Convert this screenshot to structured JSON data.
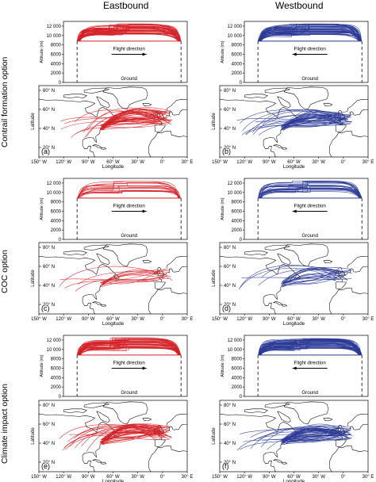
{
  "headers": {
    "left": "Eastbound",
    "right": "Westbound"
  },
  "rows": [
    {
      "label": "Contrail formation option",
      "panels": [
        "(a)",
        "(b)"
      ]
    },
    {
      "label": "COC option",
      "panels": [
        "(c)",
        "(d)"
      ]
    },
    {
      "label": "Climate impact option",
      "panels": [
        "(e)",
        "(f)"
      ]
    }
  ],
  "colors": {
    "eastbound": "#d42026",
    "westbound": "#2b3a97",
    "land": "#ffffff",
    "ocean": "#ffffff",
    "coast": "#000000"
  },
  "chart_data": {
    "type": "line",
    "profile": {
      "ylabel": "Altitude (m)",
      "yticks": [
        "0",
        "2000",
        "4000",
        "6000",
        "8000",
        "10 000",
        "12 000"
      ],
      "ylim": [
        0,
        13000
      ],
      "cruise_floor_m": 8800,
      "max_altitude_m": 12500,
      "direction_label": "Flight direction",
      "ground_label": "Ground",
      "east_arrow": "right",
      "west_arrow": "left"
    },
    "map": {
      "xlabel": "Longitude",
      "ylabel": "Latitude",
      "lon_range": [
        -150,
        30
      ],
      "lat_range": [
        10,
        85
      ],
      "xticks": [
        "150° W",
        "120° W",
        "90° W",
        "60° W",
        "30° W",
        "0°",
        "30° E"
      ],
      "yticks": [
        "20° N",
        "40° N",
        "60° N",
        "80° N"
      ],
      "route_start_lon": -74,
      "route_start_lat_range": [
        38,
        44
      ],
      "route_end_lon_range": [
        -10,
        12
      ],
      "route_end_lat_range": [
        44,
        58
      ],
      "route_peak_lat_range": [
        42,
        66
      ]
    },
    "series": [
      {
        "name": "Eastbound"
      },
      {
        "name": "Westbound"
      }
    ]
  }
}
